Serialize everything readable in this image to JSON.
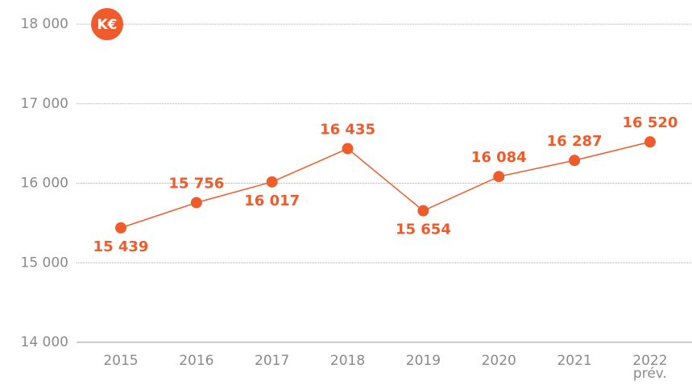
{
  "chart_data": {
    "type": "line",
    "unit_badge": "K€",
    "categories": [
      "2015",
      "2016",
      "2017",
      "2018",
      "2019",
      "2020",
      "2021",
      "2022\nprév."
    ],
    "series": [
      {
        "name": null,
        "color": "#ef5b2b",
        "values": [
          15439,
          15756,
          16017,
          16435,
          15654,
          16084,
          16287,
          16520
        ],
        "value_labels": [
          "15 439",
          "15 756",
          "16 017",
          "16 435",
          "15 654",
          "16 084",
          "16 287",
          "16 520"
        ]
      }
    ],
    "ylim": [
      14000,
      18000
    ],
    "yticks": [
      {
        "value": 14000,
        "label": "14 000"
      },
      {
        "value": 15000,
        "label": "15 000"
      },
      {
        "value": 16000,
        "label": "16 000"
      },
      {
        "value": 17000,
        "label": "17 000"
      },
      {
        "value": 18000,
        "label": "18 000"
      }
    ],
    "grid": true
  }
}
